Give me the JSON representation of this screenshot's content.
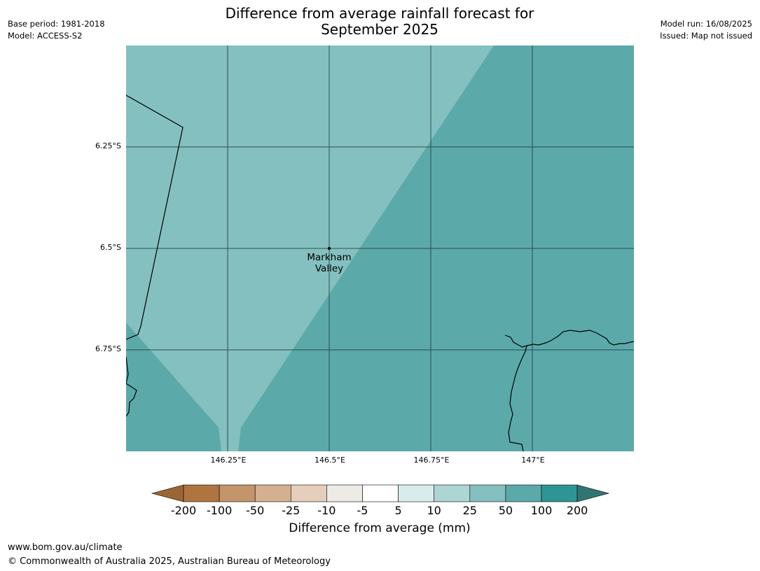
{
  "title_line1": "Difference from average rainfall forecast for",
  "title_line2": "September 2025",
  "meta_left": {
    "base_period": "Base period: 1981-2018",
    "model": "Model: ACCESS-S2"
  },
  "meta_right": {
    "model_run": "Model run: 16/08/2025",
    "issued": "Issued: Map not issued"
  },
  "map": {
    "lat_labels": [
      "6.25°S",
      "6.5°S",
      "6.75°S"
    ],
    "lon_labels": [
      "146.25°E",
      "146.5°E",
      "146.75°E",
      "147°E"
    ],
    "place": {
      "name_line1": "Markham",
      "name_line2": "Valley"
    }
  },
  "colorbar": {
    "ticks": [
      "-200",
      "-100",
      "-50",
      "-25",
      "-10",
      "-5",
      "5",
      "10",
      "25",
      "50",
      "100",
      "200"
    ],
    "colors": [
      "#9c6634",
      "#b07440",
      "#c4946a",
      "#d3b090",
      "#e5cfbc",
      "#eeebe7",
      "#ffffff",
      "#d8eceb",
      "#acd5d4",
      "#84c0bf",
      "#5ca9aa",
      "#2f9594",
      "#317573"
    ],
    "label": "Difference from average (mm)"
  },
  "legend_colors": {
    "category_25_50": "#84c0bf",
    "category_50_100": "#5ca9aa"
  },
  "footer": {
    "url": "www.bom.gov.au/climate",
    "copyright": "© Commonwealth of Australia 2025, Australian Bureau of Meteorology"
  }
}
